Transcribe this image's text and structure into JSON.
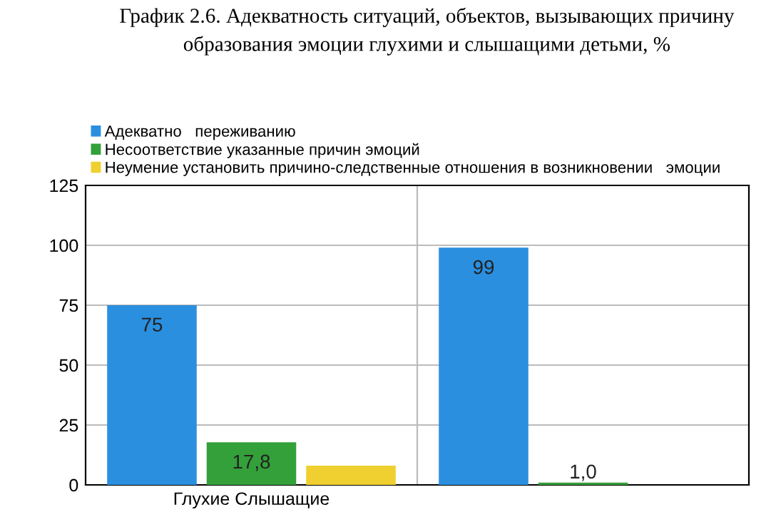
{
  "chart_data": {
    "type": "bar",
    "title": "График 2.6. Адекватность ситуаций, объектов, вызывающих причину\nобразования эмоции глухими и слышащими детьми, %",
    "categories": [
      "Глухие Слышащие",
      null
    ],
    "series": [
      {
        "name": "Адекватно   переживанию",
        "color": "#2b8fe0",
        "values": [
          75,
          99
        ],
        "value_labels": [
          "75",
          "99"
        ]
      },
      {
        "name": "Несоответствие указанные причин эмоций",
        "color": "#34a03a",
        "values": [
          17.8,
          1.0
        ],
        "value_labels": [
          "17,8",
          "1,0"
        ]
      },
      {
        "name": "Неумение установить причино-следственные отношения в возникновении   эмоции",
        "color": "#f0d030",
        "values": [
          8,
          0
        ]
      }
    ],
    "ylim": [
      0,
      125
    ],
    "yticks": [
      0,
      25,
      50,
      75,
      100,
      125
    ],
    "grid": true,
    "legend": "top left"
  }
}
